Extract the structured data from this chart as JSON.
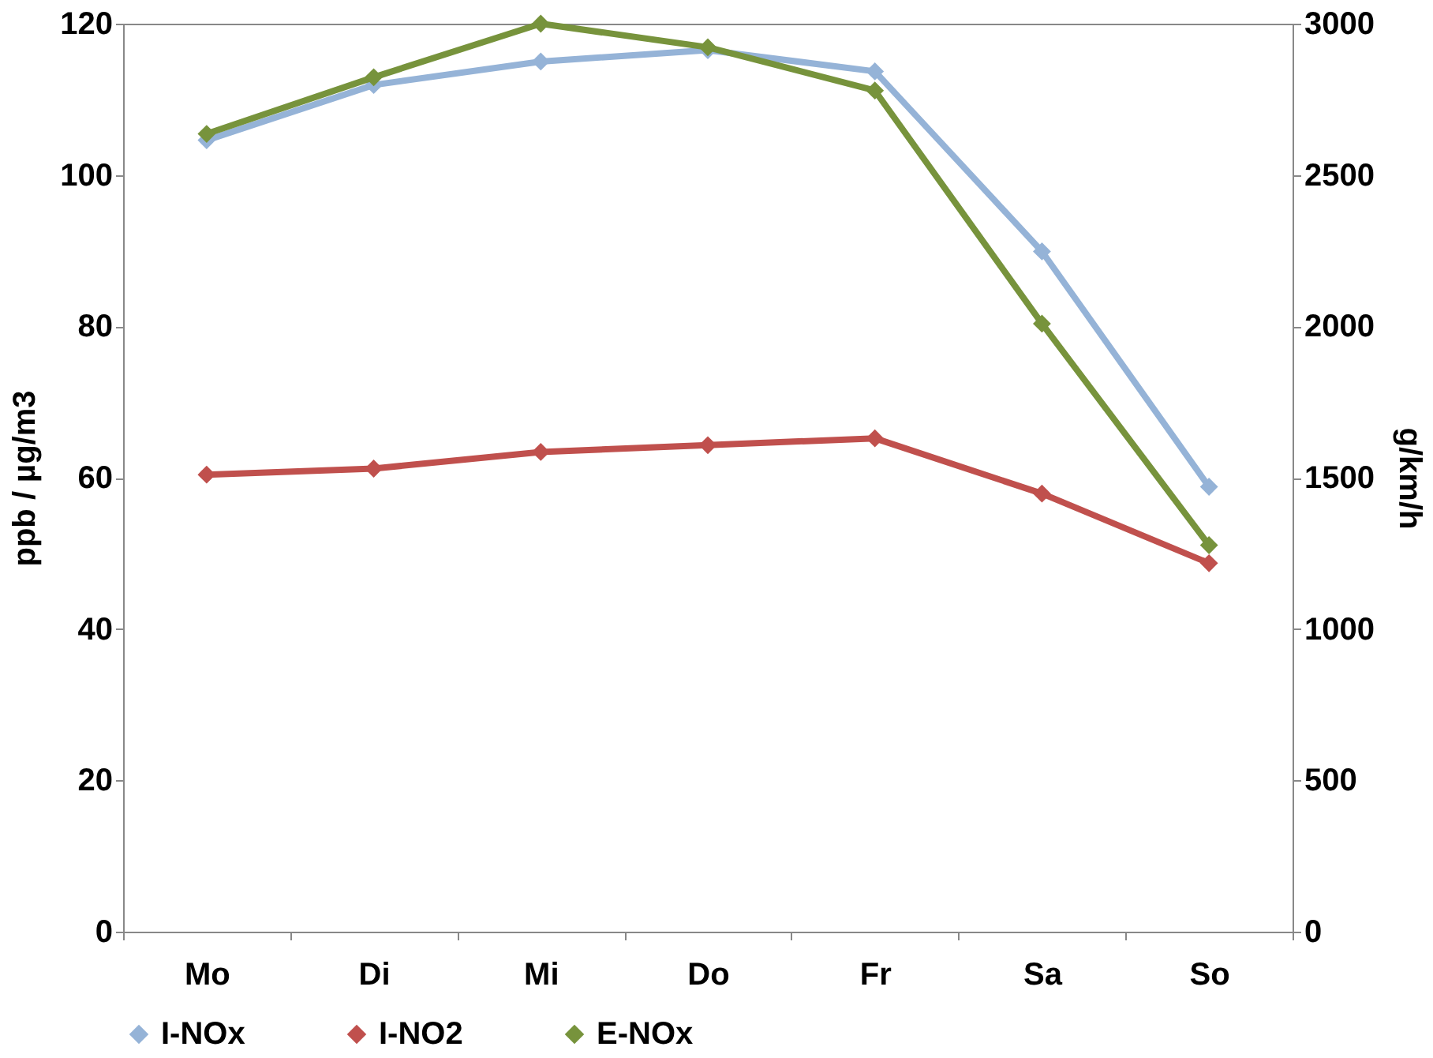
{
  "chart_data": {
    "type": "line",
    "categories": [
      "Mo",
      "Di",
      "Mi",
      "Do",
      "Fr",
      "Sa",
      "So"
    ],
    "ylabel": "ppb / µg/m3",
    "y2label": "g/km/h",
    "ylim": [
      0,
      120
    ],
    "yticks": [
      0,
      20,
      40,
      60,
      80,
      100,
      120
    ],
    "y2lim": [
      0,
      3000
    ],
    "y2ticks": [
      0,
      500,
      1000,
      1500,
      2000,
      2500,
      3000
    ],
    "grid": false,
    "legend": "bottom",
    "marker": "diamond",
    "line_style": "solid",
    "series": [
      {
        "name": "I-NOx",
        "color": "#95b3d7",
        "values": [
          104.6,
          111.9,
          115,
          116.5,
          113.7,
          89.9,
          58.8
        ]
      },
      {
        "name": "I-NO2",
        "color": "#c0504d",
        "values": [
          60.4,
          61.2,
          63.4,
          64.3,
          65.2,
          57.9,
          48.7
        ]
      },
      {
        "name": "E-NOx",
        "color": "#77933c",
        "axis": "y2",
        "values": [
          2636,
          2823,
          3000,
          2922,
          2779,
          2009,
          1277
        ]
      }
    ]
  }
}
